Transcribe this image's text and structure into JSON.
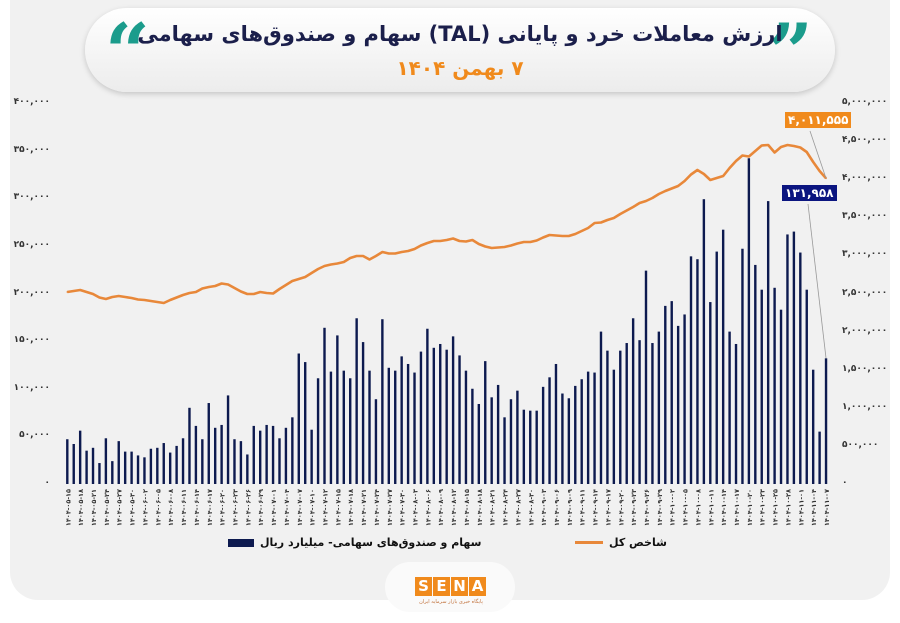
{
  "header": {
    "title": "ارزش معاملات خرد و پایانی (TAL) سهام و صندوق‌های سهامی",
    "subtitle": "۷ بهمن ۱۴۰۴",
    "quote_left": "“",
    "quote_right": "”"
  },
  "colors": {
    "bars": "#0d1a4f",
    "line": "#e8883a",
    "accent_teal": "#1b9c8c",
    "subtitle": "#f08a1c"
  },
  "chart_data": {
    "type": "bar+line",
    "grid": false,
    "legend_placement": "bottom",
    "y_left": {
      "range": [
        0,
        400000
      ],
      "ticks": [
        "۰",
        "۵۰,۰۰۰",
        "۱۰۰,۰۰۰",
        "۱۵۰,۰۰۰",
        "۲۰۰,۰۰۰",
        "۲۵۰,۰۰۰",
        "۳۰۰,۰۰۰",
        "۳۵۰,۰۰۰",
        "۴۰۰,۰۰۰"
      ]
    },
    "y_right": {
      "range": [
        0,
        5000000
      ],
      "ticks": [
        "۰",
        "۵۰۰,۰۰۰",
        "۱,۰۰۰,۰۰۰",
        "۱,۵۰۰,۰۰۰",
        "۲,۰۰۰,۰۰۰",
        "۲,۵۰۰,۰۰۰",
        "۳,۰۰۰,۰۰۰",
        "۳,۵۰۰,۰۰۰",
        "۴,۰۰۰,۰۰۰",
        "۴,۵۰۰,۰۰۰",
        "۵,۰۰۰,۰۰۰"
      ]
    },
    "x_labels": [
      "۱۴۰۴-۰۵-۱۵",
      "۱۴۰۴-۰۵-۱۸",
      "۱۴۰۴-۰۵-۲۱",
      "۱۴۰۴-۰۵-۲۴",
      "۱۴۰۴-۰۵-۲۷",
      "۱۴۰۴-۰۵-۳۰",
      "۱۴۰۴-۰۶-۰۲",
      "۱۴۰۴-۰۶-۰۵",
      "۱۴۰۴-۰۶-۰۸",
      "۱۴۰۴-۰۶-۱۱",
      "۱۴۰۴-۰۶-۱۴",
      "۱۴۰۴-۰۶-۱۷",
      "۱۴۰۴-۰۶-۲۰",
      "۱۴۰۴-۰۶-۲۳",
      "۱۴۰۴-۰۶-۲۶",
      "۱۴۰۴-۰۶-۲۹",
      "۱۴۰۴-۰۷-۰۱",
      "۱۴۰۴-۰۷-۰۴",
      "۱۴۰۴-۰۷-۰۷",
      "۱۴۰۴-۰۷-۱۰",
      "۱۴۰۴-۰۷-۱۲",
      "۱۴۰۴-۰۷-۱۵",
      "۱۴۰۴-۰۷-۱۸",
      "۱۴۰۴-۰۷-۲۱",
      "۱۴۰۴-۰۷-۲۴",
      "۱۴۰۴-۰۷-۲۷",
      "۱۴۰۴-۰۷-۳۰",
      "۱۴۰۴-۰۸-۰۳",
      "۱۴۰۴-۰۸-۰۶",
      "۱۴۰۴-۰۸-۰۹",
      "۱۴۰۴-۰۸-۱۲",
      "۱۴۰۴-۰۸-۱۵",
      "۱۴۰۴-۰۸-۱۸",
      "۱۴۰۴-۰۸-۲۱",
      "۱۴۰۴-۰۸-۲۴",
      "۱۴۰۴-۰۸-۲۷",
      "۱۴۰۴-۰۸-۳۰",
      "۱۴۰۴-۰۹-۰۳",
      "۱۴۰۴-۰۹-۰۶",
      "۱۴۰۴-۰۹-۰۹",
      "۱۴۰۴-۰۹-۱۱",
      "۱۴۰۴-۰۹-۱۴",
      "۱۴۰۴-۰۹-۱۷",
      "۱۴۰۴-۰۹-۲۰",
      "۱۴۰۴-۰۹-۲۳",
      "۱۴۰۴-۰۹-۲۶",
      "۱۴۰۴-۰۹-۲۹",
      "۱۴۰۴-۱۰-۰۲",
      "۱۴۰۴-۱۰-۰۵",
      "۱۴۰۴-۱۰-۰۸",
      "۱۴۰۴-۱۰-۱۱",
      "۱۴۰۴-۱۰-۱۴",
      "۱۴۰۴-۱۰-۱۷",
      "۱۴۰۴-۱۰-۲۰",
      "۱۴۰۴-۱۰-۲۳",
      "۱۴۰۴-۱۰-۲۵",
      "۱۴۰۴-۱۰-۲۸",
      "۱۴۰۴-۱۱-۰۱",
      "۱۴۰۴-۱۱-۰۴",
      "۱۴۰۴-۱۱-۰۷"
    ],
    "series": [
      {
        "name": "سهام و صندوق‌های سهامی- میلیارد ریال",
        "type": "bar",
        "axis": "left",
        "values": [
          47000,
          42000,
          56000,
          35000,
          38000,
          22000,
          48000,
          24000,
          45000,
          34000,
          34000,
          30000,
          28000,
          37000,
          38000,
          43000,
          33000,
          40000,
          48000,
          80000,
          61000,
          47000,
          85000,
          59000,
          62000,
          93000,
          47000,
          45000,
          31000,
          61000,
          56000,
          62000,
          61000,
          48000,
          59000,
          70000,
          137000,
          128000,
          57000,
          111000,
          164000,
          118000,
          156000,
          119000,
          111000,
          174000,
          149000,
          119000,
          89000,
          173000,
          122000,
          119000,
          134000,
          126000,
          117000,
          139000,
          163000,
          143000,
          147000,
          141000,
          155000,
          135000,
          119000,
          100000,
          84000,
          129000,
          91000,
          104000,
          70000,
          89000,
          98000,
          78000,
          77000,
          77000,
          102000,
          112000,
          126000,
          95000,
          90000,
          103000,
          110000,
          118000,
          117000,
          160000,
          140000,
          120000,
          140000,
          148000,
          174000,
          151000,
          224000,
          148000,
          160000,
          187000,
          192000,
          166000,
          178000,
          239000,
          236000,
          299000,
          191000,
          244000,
          267000,
          160000,
          147000,
          247000,
          342000,
          230000,
          204000,
          297000,
          206000,
          183000,
          262000,
          265000,
          243000,
          204000,
          120000,
          55000,
          131958
        ]
      },
      {
        "name": "شاخص کل",
        "type": "line",
        "axis": "right",
        "values": [
          2520000,
          2533000,
          2546000,
          2520000,
          2493000,
          2448000,
          2428000,
          2454000,
          2467000,
          2454000,
          2441000,
          2421000,
          2415000,
          2402000,
          2388000,
          2375000,
          2415000,
          2448000,
          2480000,
          2507000,
          2520000,
          2566000,
          2585000,
          2598000,
          2631000,
          2618000,
          2572000,
          2526000,
          2493000,
          2493000,
          2520000,
          2507000,
          2500000,
          2559000,
          2612000,
          2664000,
          2690000,
          2717000,
          2769000,
          2822000,
          2861000,
          2881000,
          2894000,
          2913000,
          2966000,
          2992000,
          2992000,
          2946000,
          2992000,
          3045000,
          3025000,
          3025000,
          3045000,
          3058000,
          3084000,
          3130000,
          3163000,
          3189000,
          3189000,
          3202000,
          3222000,
          3189000,
          3182000,
          3202000,
          3150000,
          3117000,
          3097000,
          3104000,
          3110000,
          3130000,
          3156000,
          3176000,
          3176000,
          3195000,
          3235000,
          3268000,
          3261000,
          3255000,
          3255000,
          3281000,
          3320000,
          3360000,
          3425000,
          3432000,
          3465000,
          3491000,
          3543000,
          3589000,
          3635000,
          3688000,
          3714000,
          3753000,
          3806000,
          3845000,
          3878000,
          3911000,
          3976000,
          4062000,
          4121000,
          4068000,
          3990000,
          4016000,
          4042000,
          4147000,
          4239000,
          4311000,
          4298000,
          4370000,
          4442000,
          4449000,
          4350000,
          4423000,
          4449000,
          4436000,
          4416000,
          4357000,
          4226000,
          4108000,
          4011555
        ]
      }
    ],
    "annotations": {
      "last_index": "۴,۰۱۱,۵۵۵",
      "last_value": "۱۳۱,۹۵۸"
    }
  },
  "legend": {
    "bars_label": "سهام و صندوق‌های سهامی- میلیارد ریال",
    "line_label": "شاخص کل"
  },
  "footer": {
    "logo_text": [
      "S",
      "E",
      "N",
      "A"
    ],
    "logo_subtitle": "پایگاه خبری بازار سرمایه ایران"
  }
}
